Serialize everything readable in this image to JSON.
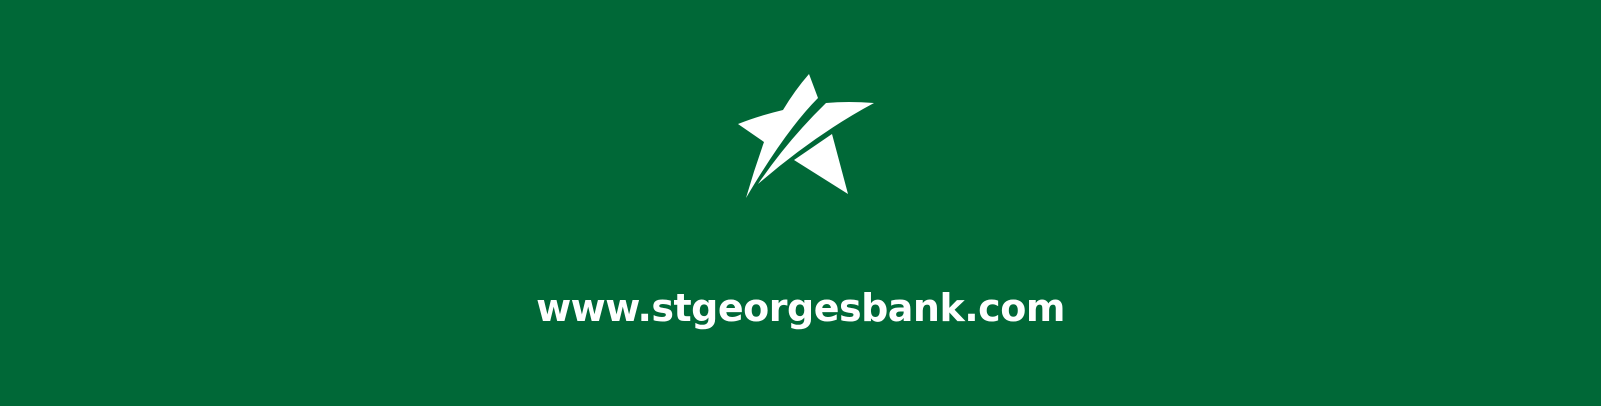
{
  "banner": {
    "background_color": "#006837",
    "foreground_color": "#ffffff",
    "logo_icon": "shooting-star-icon",
    "website": "www.stgeorgesbank.com"
  }
}
